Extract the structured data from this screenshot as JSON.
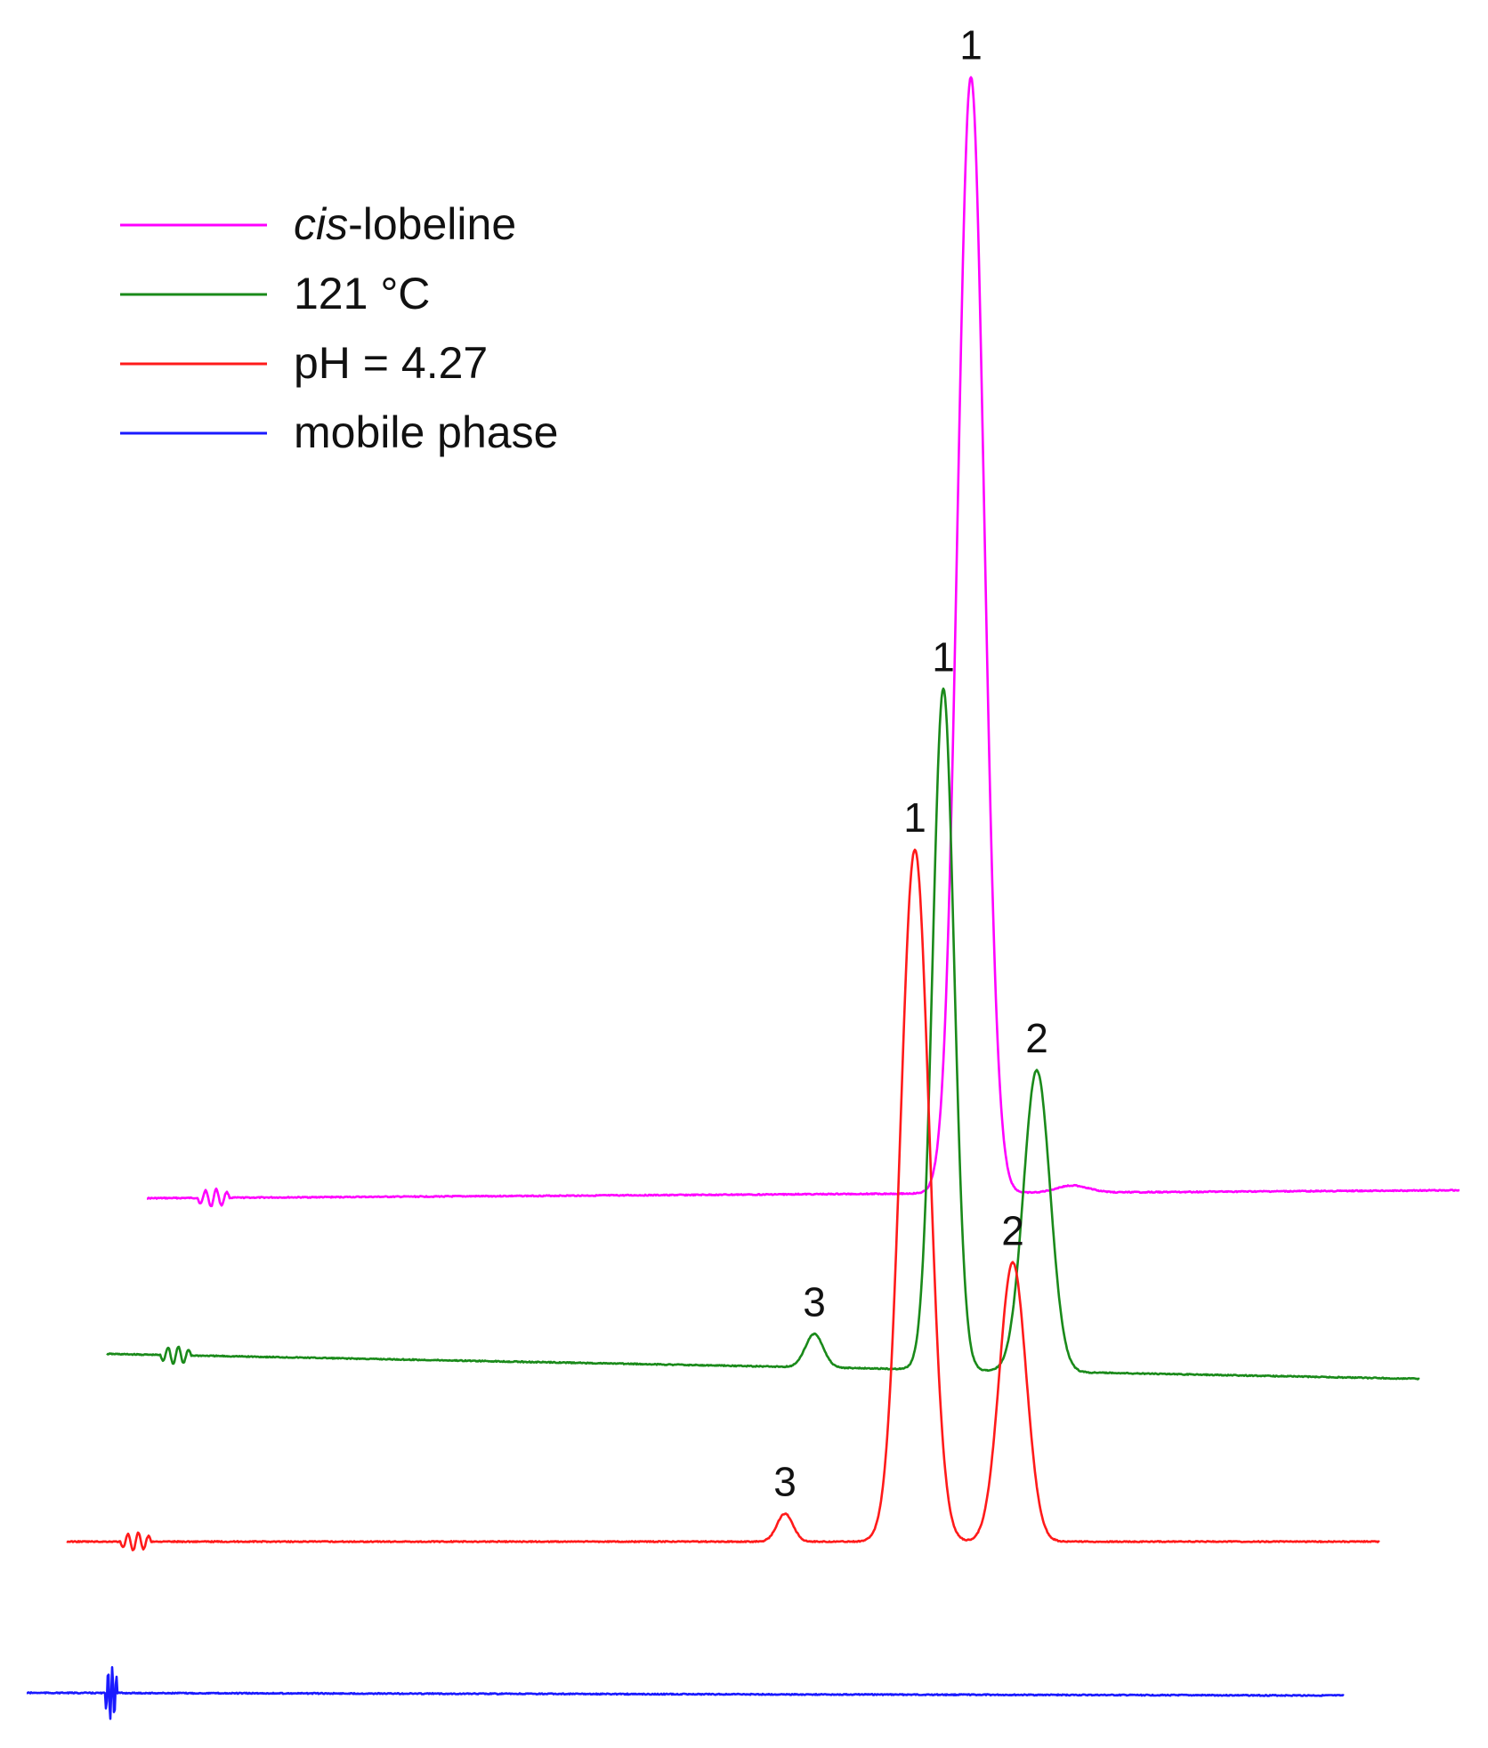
{
  "chart_data": {
    "type": "line",
    "title": "",
    "xlabel": "",
    "ylabel": "",
    "grid": false,
    "legend_position": "top-left",
    "series": [
      {
        "name": "cis-lobeline",
        "name_parts": [
          "cis",
          "-lobeline"
        ],
        "color": "#ff00ff",
        "peaks": [
          {
            "label": "1",
            "height": 1.0
          }
        ]
      },
      {
        "name": "121 °C",
        "color": "#1a8a1a",
        "peaks": [
          {
            "label": "1",
            "height": 0.61
          },
          {
            "label": "2",
            "height": 0.27
          },
          {
            "label": "3",
            "height": 0.03
          }
        ]
      },
      {
        "name": "pH = 4.27",
        "color": "#ff1a1a",
        "peaks": [
          {
            "label": "1",
            "height": 0.62
          },
          {
            "label": "2",
            "height": 0.25
          },
          {
            "label": "3",
            "height": 0.025
          }
        ]
      },
      {
        "name": "mobile phase",
        "color": "#1a1aff",
        "peaks": []
      }
    ]
  }
}
